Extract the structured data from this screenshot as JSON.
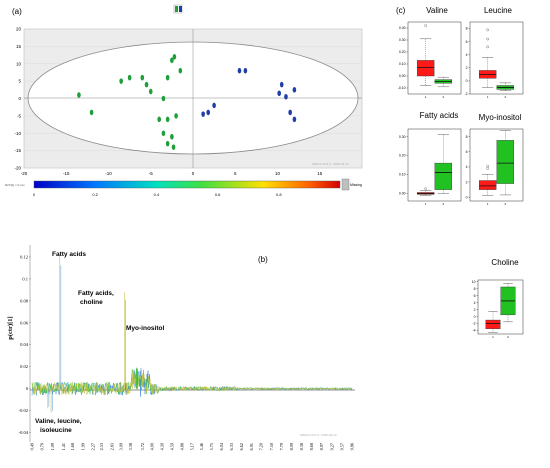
{
  "panels": {
    "a": {
      "label": "(a)"
    },
    "b": {
      "label": "(b)"
    },
    "c": {
      "label": "(c)"
    }
  },
  "colors": {
    "group1": "#1f9e3a",
    "group2": "#1f3fa8",
    "box_red": "#ff1a1a",
    "box_green": "#22c122",
    "plot_bg": "#ececec"
  },
  "chart_data": [
    {
      "type": "scatter",
      "panel": "a",
      "xlim": [
        -20,
        20
      ],
      "ylim": [
        -20,
        20
      ],
      "xticks": [
        "-20",
        "-15",
        "-10",
        "-5",
        "0",
        "5",
        "10",
        "15"
      ],
      "yticks": [
        "20",
        "15",
        "10",
        "5",
        "0",
        "-5",
        "-10",
        "-15",
        "-20"
      ],
      "series": [
        {
          "color": "#1f9e3a",
          "points": [
            [
              -13.5,
              1
            ],
            [
              -12,
              -4
            ],
            [
              -8.5,
              5
            ],
            [
              -7.5,
              6
            ],
            [
              -6,
              6
            ],
            [
              -5.5,
              4
            ],
            [
              -5,
              2
            ],
            [
              -3.5,
              0
            ],
            [
              -3,
              6
            ],
            [
              -2.5,
              11
            ],
            [
              -2.2,
              12
            ],
            [
              -1.5,
              8
            ],
            [
              -4,
              -6
            ],
            [
              -3,
              -6
            ],
            [
              -2,
              -5
            ],
            [
              -3.5,
              -10
            ],
            [
              -2.5,
              -11
            ],
            [
              -3,
              -13
            ],
            [
              -2.3,
              -14
            ]
          ]
        },
        {
          "color": "#1f3fa8",
          "points": [
            [
              5.5,
              8
            ],
            [
              6.2,
              8
            ],
            [
              2.5,
              -2
            ],
            [
              1.8,
              -4
            ],
            [
              1.2,
              -4.5
            ],
            [
              10.5,
              4
            ],
            [
              10.2,
              1.5
            ],
            [
              11,
              0.5
            ],
            [
              12,
              2.5
            ],
            [
              11.5,
              -4
            ],
            [
              12,
              -6
            ]
          ]
        }
      ]
    },
    {
      "type": "line",
      "panel": "b",
      "ylabel": "p(ctr)[1]",
      "yticks": [
        "0.12",
        "0.1",
        "0.08",
        "0.06",
        "0.04",
        "0.02",
        "0",
        "-0.02",
        "-0.04"
      ],
      "xticks": [
        "0.49",
        "0.79",
        "1.09",
        "1.41",
        "1.68",
        "1.99",
        "2.27",
        "2.53",
        "2.83",
        "3.09",
        "3.38",
        "3.72",
        "4.00",
        "4.30",
        "4.59",
        "4.88",
        "5.17",
        "5.46",
        "5.75",
        "6.04",
        "6.33",
        "6.62",
        "6.91",
        "7.20",
        "7.50",
        "7.79",
        "8.09",
        "8.38",
        "8.68",
        "8.97",
        "9.27",
        "9.57",
        "9.86"
      ],
      "annotations": [
        {
          "text": "Fatty acids"
        },
        {
          "text": "Fatty acids,"
        },
        {
          "text": "choline"
        },
        {
          "text": "Myo-inositol"
        },
        {
          "text": "Valine, leucine,"
        },
        {
          "text": "isoleucine"
        }
      ],
      "peaks": [
        {
          "x": 1.3,
          "y": 0.122
        },
        {
          "x": 3.2,
          "y": 0.088
        },
        {
          "x": 3.55,
          "y": 0.018
        },
        {
          "x": 0.95,
          "y": -0.018
        },
        {
          "x": 1.05,
          "y": -0.022
        }
      ]
    },
    {
      "type": "box",
      "panel": "c",
      "boxes": [
        {
          "title": "Valine",
          "yticks": [
            "0.40",
            "0.30",
            "0.20",
            "0.10",
            "0.00",
            "-0.10"
          ],
          "ylim": [
            -0.15,
            0.45
          ],
          "groups": [
            {
              "color": "#ff1a1a",
              "min": -0.08,
              "q1": 0.0,
              "median": 0.07,
              "q3": 0.13,
              "max": 0.31
            },
            {
              "color": "#22c122",
              "min": -0.09,
              "q1": -0.06,
              "median": -0.045,
              "q3": -0.03,
              "max": -0.01
            }
          ],
          "outliers": [
            [
              0,
              0.42
            ]
          ]
        },
        {
          "title": "Leucine",
          "yticks": [
            "8",
            "6",
            "4",
            "2",
            "0",
            "-2"
          ],
          "ylim": [
            -2,
            9
          ],
          "groups": [
            {
              "color": "#ff1a1a",
              "min": -1.0,
              "q1": 0.4,
              "median": 1.0,
              "q3": 1.6,
              "max": 3.6
            },
            {
              "color": "#22c122",
              "min": -1.5,
              "q1": -1.3,
              "median": -1.0,
              "q3": -0.7,
              "max": -0.3
            }
          ],
          "outliers": [
            [
              0,
              5.2
            ],
            [
              0,
              6.4
            ],
            [
              0,
              7.8
            ]
          ]
        },
        {
          "title": "Fatty acids",
          "yticks": [
            "0.30",
            "0.20",
            "0.10",
            "0.00"
          ],
          "ylim": [
            -0.04,
            0.34
          ],
          "groups": [
            {
              "color": "#ff1a1a",
              "min": -0.01,
              "q1": -0.005,
              "median": 0.0,
              "q3": 0.005,
              "max": 0.015
            },
            {
              "color": "#22c122",
              "min": 0.0,
              "q1": 0.02,
              "median": 0.11,
              "q3": 0.16,
              "max": 0.31
            }
          ],
          "outliers": [
            [
              0,
              0.025
            ]
          ]
        },
        {
          "title": "Myo-inositol",
          "yticks": [
            "8",
            "6",
            "4",
            "2",
            "0"
          ],
          "ylim": [
            -0.5,
            9
          ],
          "groups": [
            {
              "color": "#ff1a1a",
              "min": 0.2,
              "q1": 1.0,
              "median": 1.5,
              "q3": 2.2,
              "max": 3.0
            },
            {
              "color": "#22c122",
              "min": 0.3,
              "q1": 1.8,
              "median": 4.5,
              "q3": 7.5,
              "max": 8.8
            }
          ],
          "outliers": [
            [
              0,
              3.8
            ],
            [
              0,
              4.1
            ]
          ]
        },
        {
          "title": "Choline",
          "yticks": [
            "10",
            "8",
            "6",
            "4",
            "2",
            "0",
            "-2",
            "-4"
          ],
          "ylim": [
            -5,
            10.5
          ],
          "groups": [
            {
              "color": "#ff1a1a",
              "min": -4.5,
              "q1": -3.5,
              "median": -2.0,
              "q3": -1.0,
              "max": 1.5
            },
            {
              "color": "#22c122",
              "min": -1.5,
              "q1": 0.5,
              "median": 4.5,
              "q3": 8.5,
              "max": 9.5
            }
          ],
          "outliers": []
        }
      ]
    }
  ],
  "colorbar": {
    "ticks": [
      "0",
      "0.2",
      "0.4",
      "0.6",
      "0.8"
    ],
    "label": "R2X[1] = 0.xxx",
    "missing": "Missing"
  },
  "watermarks": {
    "a": "SIMCA 13.0.3 - 2016-03-14",
    "b": "SIMCA 13.0.3 - 2016-03-14"
  }
}
